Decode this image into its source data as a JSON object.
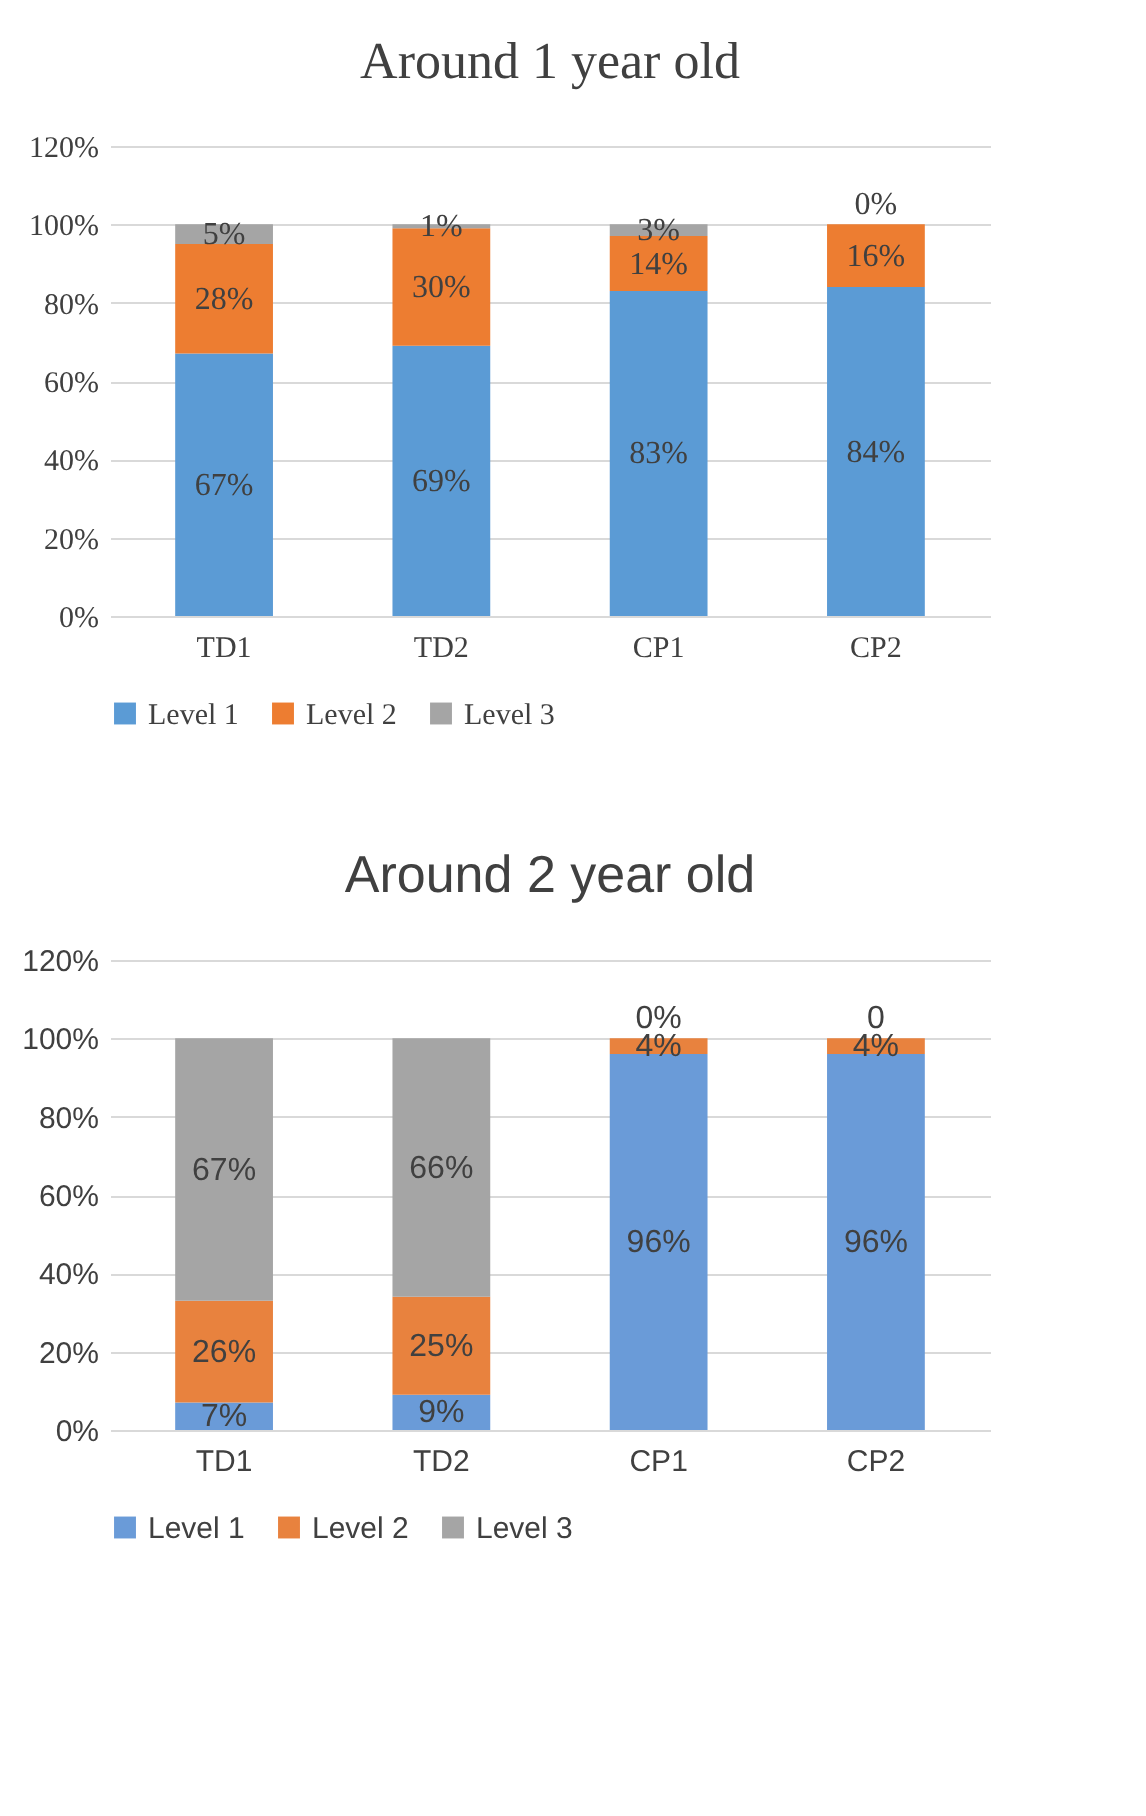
{
  "chart_data": [
    {
      "type": "bar",
      "title": "Around 1 year old",
      "categories": [
        "TD1",
        "TD2",
        "CP1",
        "CP2"
      ],
      "stacked": true,
      "ylim": [
        0,
        120
      ],
      "yticks": [
        {
          "value": 0,
          "label": "0%"
        },
        {
          "value": 20,
          "label": "20%"
        },
        {
          "value": 40,
          "label": "40%"
        },
        {
          "value": 60,
          "label": "60%"
        },
        {
          "value": 80,
          "label": "80%"
        },
        {
          "value": 100,
          "label": "100%"
        },
        {
          "value": 120,
          "label": "120%"
        }
      ],
      "grid": "y",
      "legend": "bottom",
      "series": [
        {
          "name": "Level 1",
          "color": "#5b9bd5",
          "values": [
            67,
            69,
            83,
            84
          ],
          "value_labels": [
            "67%",
            "69%",
            "83%",
            "84%"
          ]
        },
        {
          "name": "Level 2",
          "color": "#ed7d31",
          "values": [
            28,
            30,
            14,
            16
          ],
          "value_labels": [
            "28%",
            "30%",
            "14%",
            "16%"
          ]
        },
        {
          "name": "Level 3",
          "color": "#a5a5a5",
          "values": [
            5,
            1,
            3,
            0
          ],
          "value_labels": [
            "5%",
            "1%",
            "3%",
            "0%"
          ]
        }
      ]
    },
    {
      "type": "bar",
      "title": "Around 2 year old",
      "categories": [
        "TD1",
        "TD2",
        "CP1",
        "CP2"
      ],
      "stacked": true,
      "ylim": [
        0,
        120
      ],
      "yticks": [
        {
          "value": 0,
          "label": "0%"
        },
        {
          "value": 20,
          "label": "20%"
        },
        {
          "value": 40,
          "label": "40%"
        },
        {
          "value": 60,
          "label": "60%"
        },
        {
          "value": 80,
          "label": "80%"
        },
        {
          "value": 100,
          "label": "100%"
        },
        {
          "value": 120,
          "label": "120%"
        }
      ],
      "grid": "y",
      "legend": "bottom",
      "series": [
        {
          "name": "Level 1",
          "color": "#6a9bd8",
          "values": [
            7,
            9,
            96,
            96
          ],
          "value_labels": [
            "7%",
            "9%",
            "96%",
            "96%"
          ]
        },
        {
          "name": "Level 2",
          "color": "#e8823e",
          "values": [
            26,
            25,
            4,
            4
          ],
          "value_labels": [
            "26%",
            "25%",
            "4%",
            "4%"
          ]
        },
        {
          "name": "Level 3",
          "color": "#a5a5a5",
          "values": [
            67,
            66,
            0,
            0
          ],
          "value_labels": [
            "67%",
            "66%",
            "0%",
            "0"
          ]
        }
      ]
    }
  ]
}
